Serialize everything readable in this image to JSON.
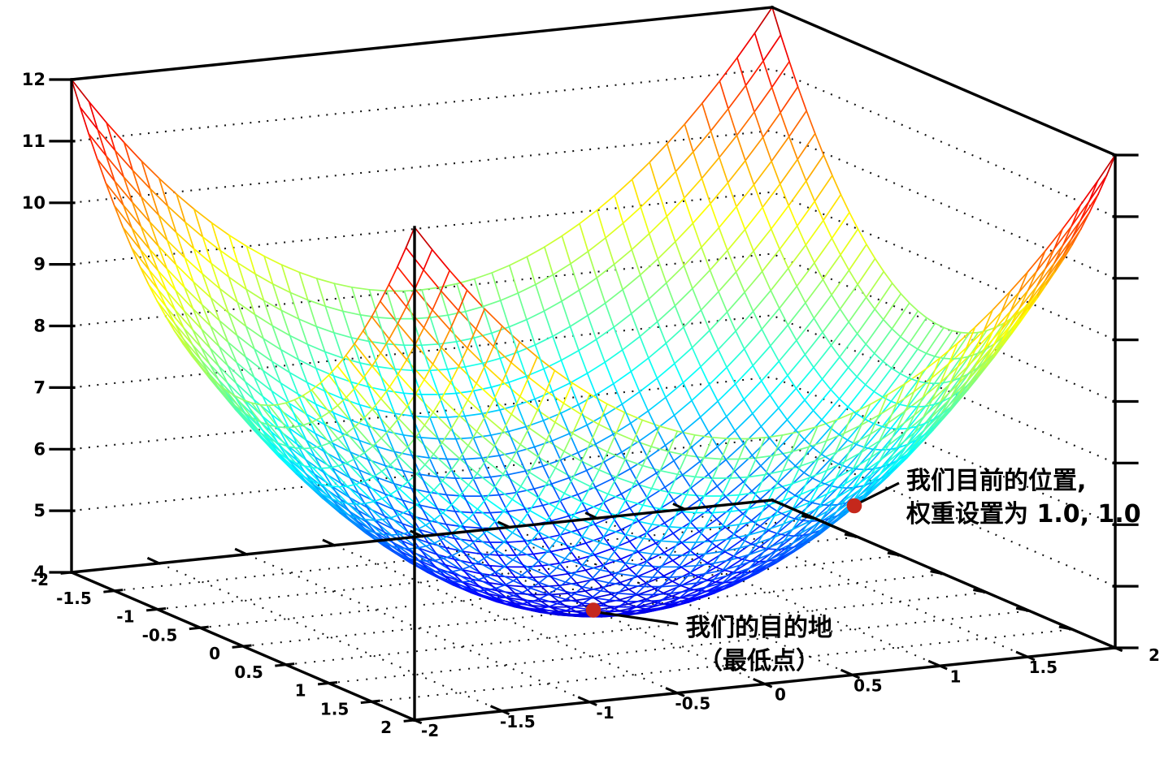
{
  "chart_data": {
    "type": "surface",
    "title": "",
    "surface_function": "z = x^2 + y^2 + 4 (loss surface bowl)",
    "x_range": [
      -2,
      2
    ],
    "y_range": [
      -2,
      2
    ],
    "z_range": [
      4,
      12
    ],
    "x_ticks": [
      -2,
      -1.5,
      -1,
      -0.5,
      0,
      0.5,
      1,
      1.5,
      2
    ],
    "y_ticks": [
      -2,
      -1.5,
      -1,
      -0.5,
      0,
      0.5,
      1,
      1.5,
      2
    ],
    "z_ticks": [
      4,
      5,
      6,
      7,
      8,
      9,
      10,
      11,
      12
    ],
    "x_tick_labels": [
      "-2",
      "-1.5",
      "-1",
      "-0.5",
      "0",
      "0.5",
      "1",
      "1.5",
      "2"
    ],
    "y_tick_labels": [
      "-2",
      "-1.5",
      "-1",
      "-0.5",
      "0",
      "0.5",
      "1",
      "1.5",
      "2"
    ],
    "z_tick_labels": [
      "4",
      "5",
      "6",
      "7",
      "8",
      "9",
      "10",
      "11",
      "12"
    ],
    "wall_grid_z_levels": [
      5,
      6,
      7,
      8,
      9,
      10,
      11
    ],
    "floor_grid_step": 0.5,
    "mesh_divisions": 40,
    "colormap": "jet",
    "grid_style": "dotted",
    "markers": [
      {
        "id": "destination",
        "x": 0.0,
        "y": 0.0,
        "z": 4.0,
        "color": "#c5281c"
      },
      {
        "id": "current-position",
        "x": 1.0,
        "y": 1.0,
        "z": 6.0,
        "color": "#c5281c"
      }
    ],
    "annotations": {
      "destination": {
        "line1": "我们的目的地",
        "line2": "（最低点）"
      },
      "current": {
        "line1": "我们目前的位置,",
        "line2": "权重设置为 1.0, 1.0"
      }
    }
  },
  "colors": {
    "background": "#ffffff",
    "axis": "#000000",
    "grid_dots": "#141414",
    "marker": "#c5281c",
    "annotation_text": "#000000"
  }
}
